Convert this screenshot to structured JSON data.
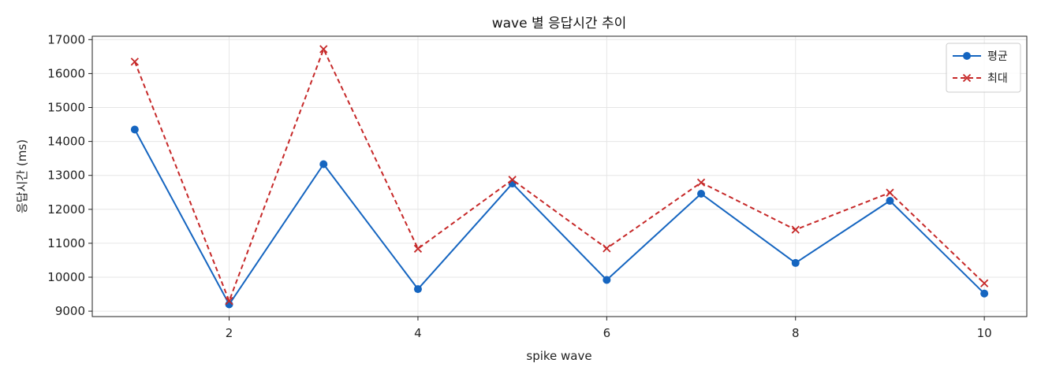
{
  "chart_data": {
    "type": "line",
    "title": "wave 별 응답시간 추이",
    "xlabel": "spike wave",
    "ylabel": "응답시간 (ms)",
    "x": [
      1,
      2,
      3,
      4,
      5,
      6,
      7,
      8,
      9,
      10
    ],
    "xticks": [
      2,
      4,
      6,
      8,
      10
    ],
    "yticks": [
      9000,
      10000,
      11000,
      12000,
      13000,
      14000,
      15000,
      16000,
      17000
    ],
    "xlim": [
      0.55,
      10.45
    ],
    "ylim": [
      8840,
      17100
    ],
    "grid": true,
    "legend_position": "top-right",
    "series": [
      {
        "name": "평균",
        "values": [
          14350,
          9200,
          13330,
          9650,
          12760,
          9920,
          12460,
          10420,
          12250,
          9520
        ],
        "color": "#1565c0",
        "line_style": "solid",
        "marker": "circle"
      },
      {
        "name": "최대",
        "values": [
          16350,
          9300,
          16720,
          10840,
          12870,
          10850,
          12790,
          11400,
          12490,
          9820
        ],
        "color": "#c62828",
        "line_style": "dashed",
        "marker": "x"
      }
    ]
  }
}
